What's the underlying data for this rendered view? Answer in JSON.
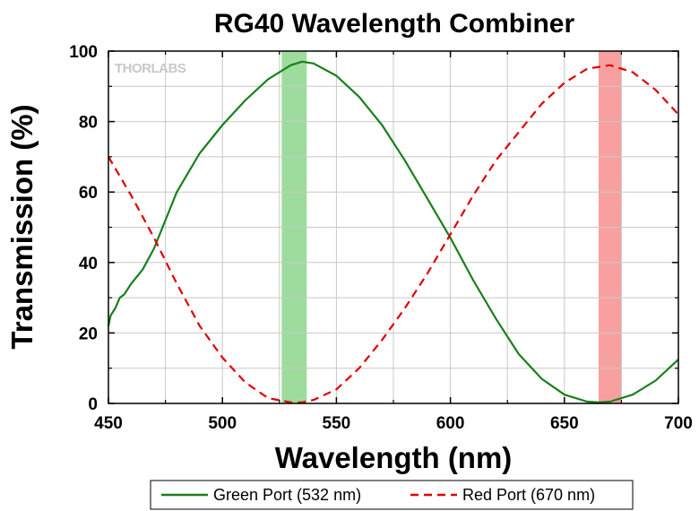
{
  "chart_data": {
    "type": "line",
    "title": "RG40 Wavelength Combiner",
    "xlabel": "Wavelength (nm)",
    "ylabel": "Transmission (%)",
    "xlim": [
      450,
      700
    ],
    "ylim": [
      0,
      100
    ],
    "xticks": [
      450,
      500,
      550,
      600,
      650,
      700
    ],
    "yticks": [
      0,
      20,
      40,
      60,
      80,
      100
    ],
    "grid": true,
    "legend_position": "bottom",
    "watermark": "THORLABS",
    "bands": [
      {
        "from": 526,
        "to": 537,
        "color": "#9edc9e"
      },
      {
        "from": 665,
        "to": 675,
        "color": "#f8a0a0"
      }
    ],
    "series": [
      {
        "name": "Green Port (532 nm)",
        "color": "#1a7f1a",
        "dash": "solid",
        "x": [
          450,
          451,
          453,
          455,
          457,
          460,
          465,
          470,
          475,
          480,
          490,
          500,
          510,
          520,
          530,
          535,
          540,
          550,
          560,
          570,
          580,
          590,
          600,
          610,
          620,
          630,
          640,
          650,
          660,
          665,
          670,
          680,
          690,
          700
        ],
        "y": [
          22,
          25,
          27,
          30,
          31,
          34,
          38,
          44,
          52,
          60,
          71,
          79,
          86,
          92,
          96,
          97,
          96.5,
          93,
          87,
          79,
          69,
          58,
          47,
          35,
          24,
          14,
          7,
          2.5,
          0.5,
          0.3,
          0.5,
          2.5,
          6.5,
          12.5
        ]
      },
      {
        "name": "Red Port (670 nm)",
        "color": "#e00000",
        "dash": "dashed",
        "x": [
          450,
          460,
          470,
          480,
          490,
          500,
          510,
          520,
          530,
          535,
          540,
          550,
          560,
          570,
          580,
          590,
          600,
          610,
          620,
          630,
          640,
          650,
          660,
          670,
          680,
          690,
          700
        ],
        "y": [
          70,
          59,
          47,
          34,
          22,
          13,
          6,
          1.5,
          0.3,
          0.3,
          1,
          4,
          10,
          18,
          27,
          37,
          48,
          59,
          69,
          77,
          85,
          91,
          95,
          96,
          94,
          89,
          82
        ]
      }
    ]
  }
}
